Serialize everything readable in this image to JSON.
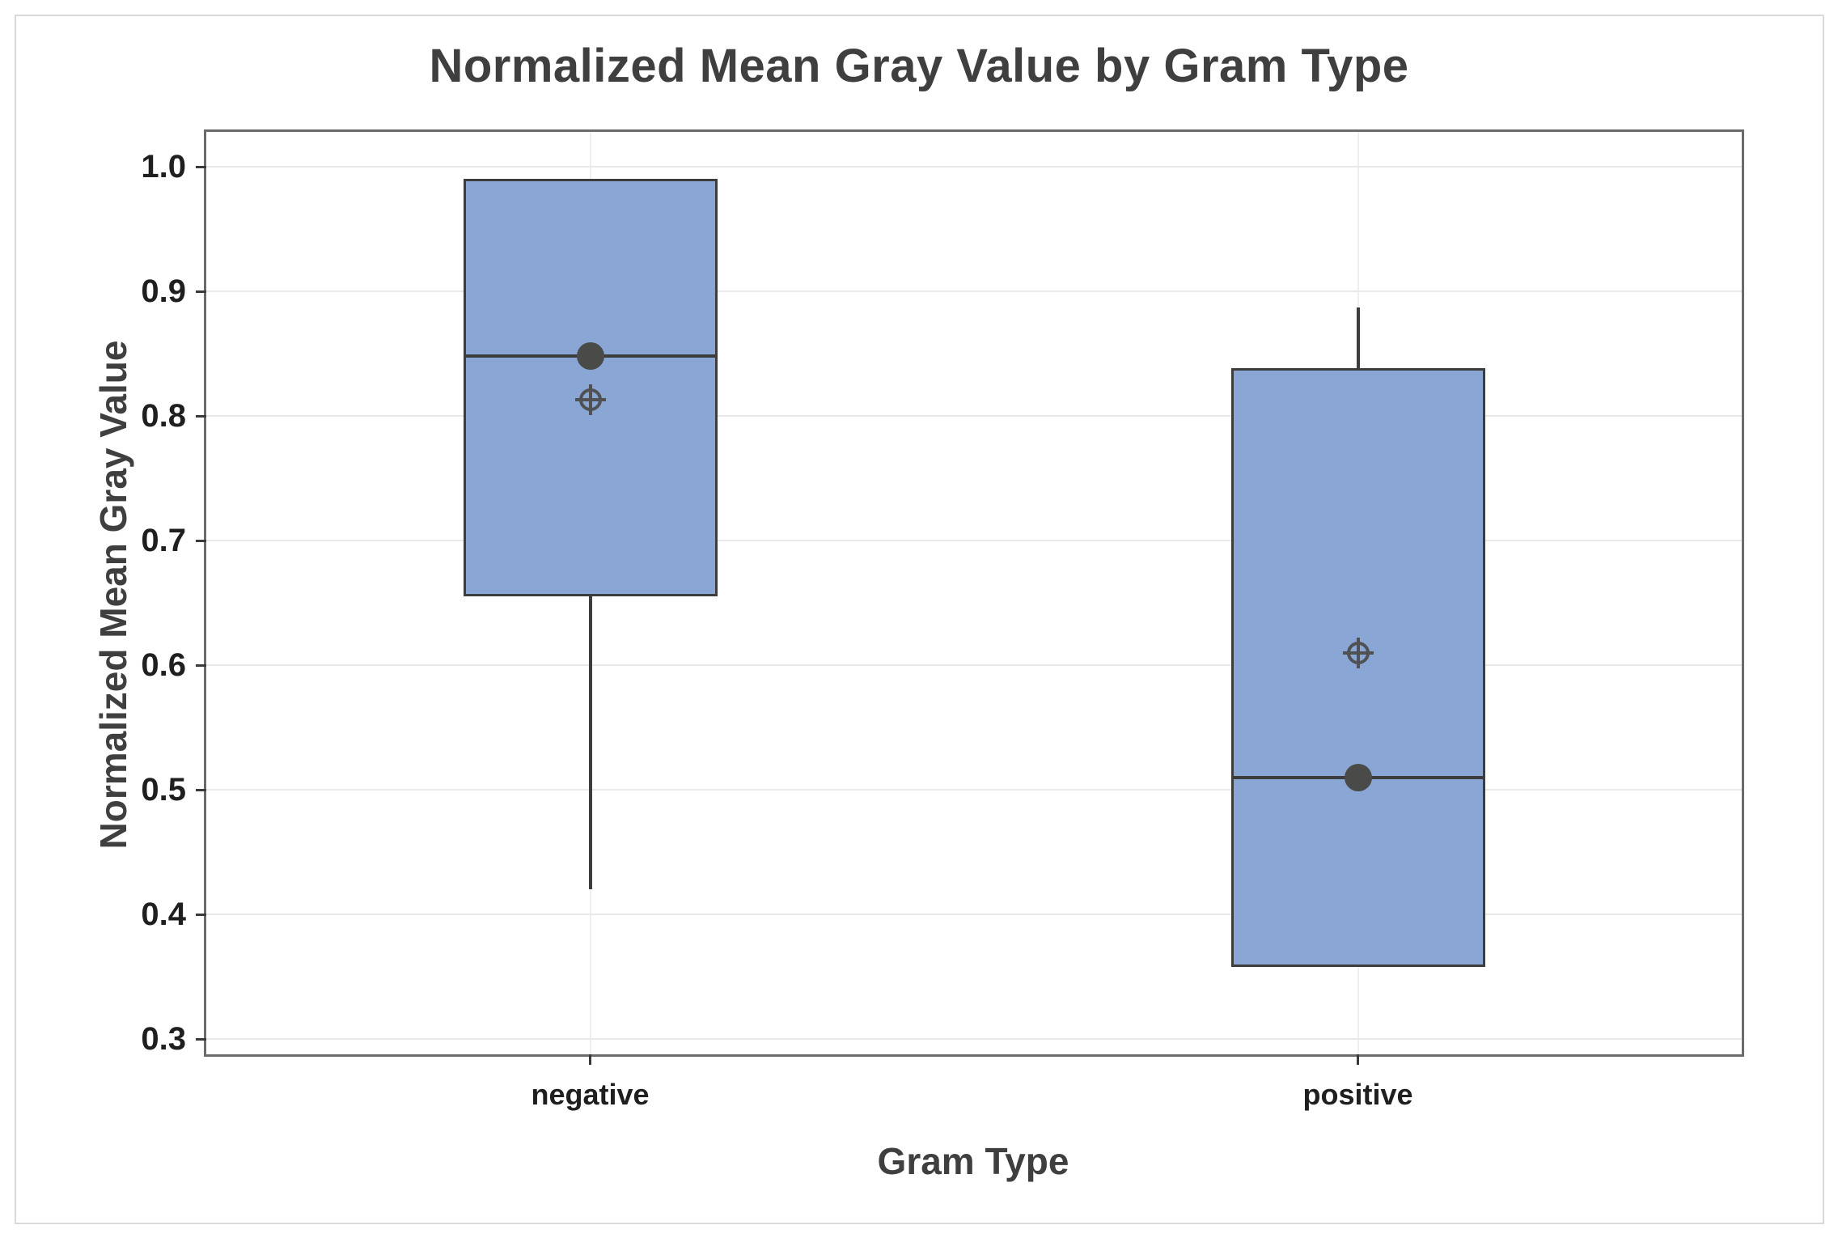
{
  "chart_data": {
    "type": "box",
    "title": "Normalized Mean Gray Value by Gram Type",
    "xlabel": "Gram Type",
    "ylabel": "Normalized Mean Gray Value",
    "ylim": [
      0.3,
      1.0
    ],
    "yticks": [
      {
        "value": 1.0,
        "label": "1.0"
      },
      {
        "value": 0.9,
        "label": "0.9"
      },
      {
        "value": 0.8,
        "label": "0.8"
      },
      {
        "value": 0.7,
        "label": "0.7"
      },
      {
        "value": 0.6,
        "label": "0.6"
      },
      {
        "value": 0.5,
        "label": "0.5"
      },
      {
        "value": 0.4,
        "label": "0.4"
      },
      {
        "value": 0.3,
        "label": "0.3"
      }
    ],
    "categories": [
      "negative",
      "positive"
    ],
    "grid": {
      "horizontal_gridlines": true,
      "vertical_gridline_per_category": true
    },
    "legend": "none",
    "series": [
      {
        "category": "negative",
        "whisker_low": 0.42,
        "q1": 0.655,
        "median": 0.848,
        "q3": 0.99,
        "whisker_high": 0.99,
        "markers": {
          "solid_dot": 0.848,
          "crosshair": 0.813
        }
      },
      {
        "category": "positive",
        "whisker_low": 0.358,
        "q1": 0.358,
        "median": 0.51,
        "q3": 0.838,
        "whisker_high": 0.887,
        "markers": {
          "solid_dot": 0.51,
          "crosshair": 0.61
        }
      }
    ],
    "colors": {
      "box_fill": "#8aa6d4",
      "box_line": "#3d3d3d",
      "marker": "#4a4a48",
      "plot_border": "#6b6b6b",
      "gridline": "#e9e9e9",
      "tick_label": "#1f1f1f",
      "axis_title": "#3f3f3f",
      "figure_border": "#d9d9d9"
    }
  }
}
